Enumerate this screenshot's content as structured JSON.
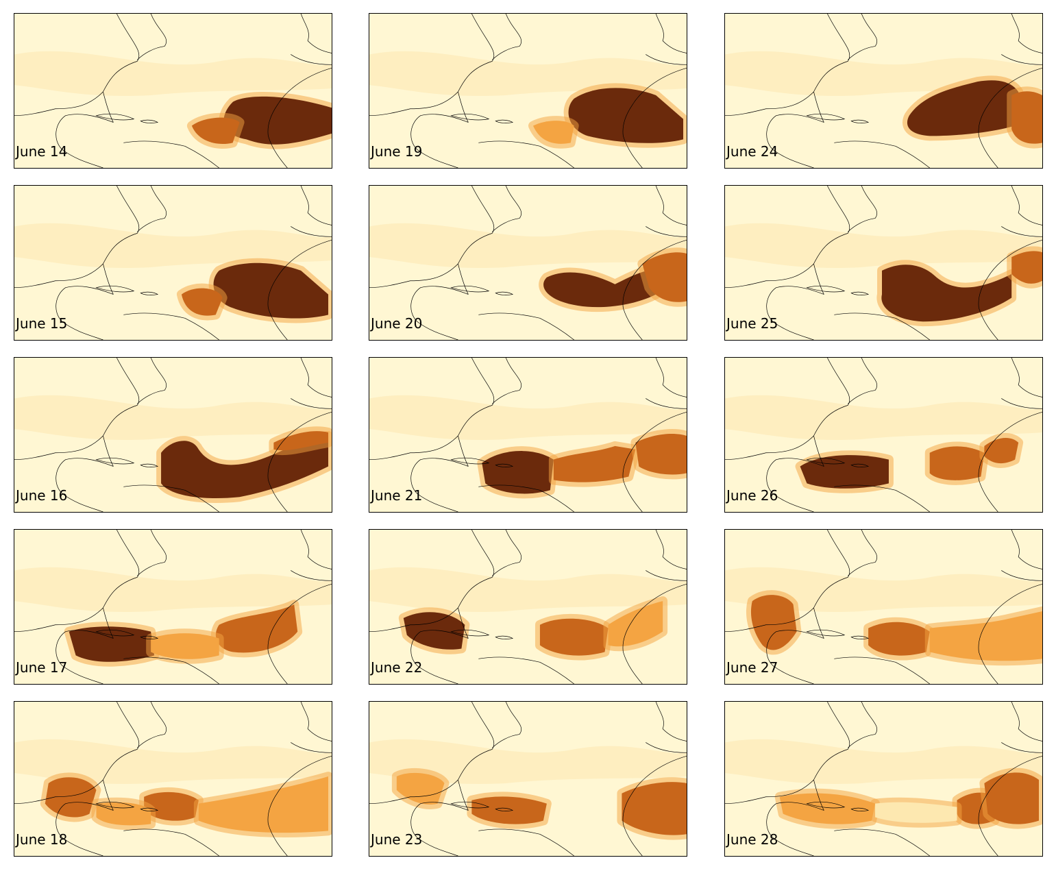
{
  "colors": {
    "background": "#ffffff",
    "panel_base": "#fff7d3",
    "low": "#fde8b0",
    "mid": "#f4a442",
    "high": "#c8661b",
    "max": "#6b2a0c",
    "coastline": "#000000"
  },
  "map": {
    "projection": "plate-carree",
    "region": "North Atlantic, Caribbean, West Africa",
    "colormap": "YlOrBr"
  },
  "panels": [
    {
      "label": "June 14",
      "plume": "african-coast"
    },
    {
      "label": "June 15",
      "plume": "african-coast"
    },
    {
      "label": "June 16",
      "plume": "mid-atlantic"
    },
    {
      "label": "June 17",
      "plume": "caribbean"
    },
    {
      "label": "June 18",
      "plume": "gulf-of-mexico"
    },
    {
      "label": "June 19",
      "plume": "african-coast"
    },
    {
      "label": "June 20",
      "plume": "african-coast"
    },
    {
      "label": "June 21",
      "plume": "caribbean"
    },
    {
      "label": "June 22",
      "plume": "caribbean"
    },
    {
      "label": "June 23",
      "plume": "gulf-of-mexico"
    },
    {
      "label": "June 24",
      "plume": "african-coast"
    },
    {
      "label": "June 25",
      "plume": "african-coast"
    },
    {
      "label": "June 26",
      "plume": "caribbean"
    },
    {
      "label": "June 27",
      "plume": "gulf-of-mexico"
    },
    {
      "label": "June 28",
      "plume": "dispersed"
    }
  ]
}
